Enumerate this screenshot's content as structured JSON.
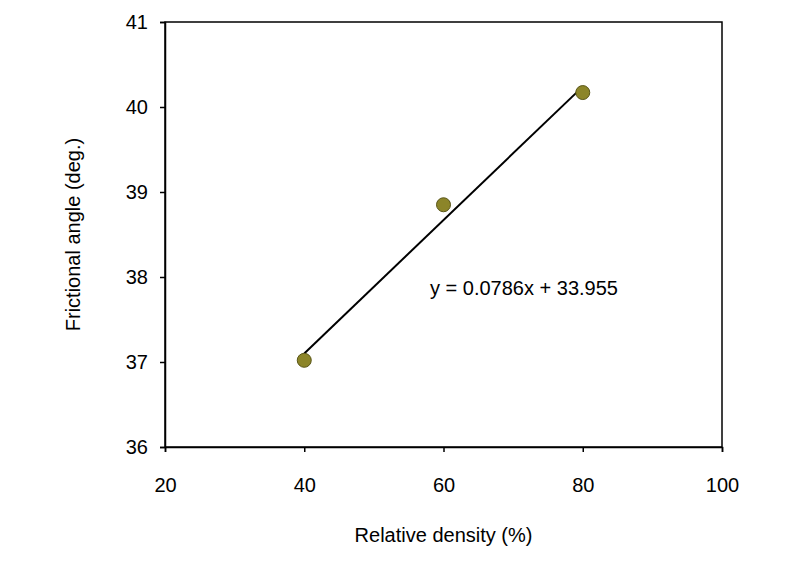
{
  "chart_data": {
    "type": "scatter",
    "x_label": "Relative density (%)",
    "y_label": "Frictional angle (deg.)",
    "annotation": "y = 0.0786x + 33.955",
    "series": [
      {
        "type": "scatter",
        "color": "#8c8529",
        "marker": "circle",
        "x": [
          40,
          60,
          80
        ],
        "values": [
          37.02,
          38.85,
          40.17
        ]
      },
      {
        "type": "line",
        "color": "#000000",
        "line_style": "solid",
        "x": [
          40,
          80
        ],
        "values": [
          37.1,
          40.24
        ]
      }
    ],
    "xlim": [
      20,
      100
    ],
    "xticks": [
      20,
      40,
      60,
      80,
      100
    ],
    "ylim": [
      36,
      41
    ],
    "yticks": [
      36,
      37,
      38,
      39,
      40,
      41
    ],
    "grid": false
  }
}
